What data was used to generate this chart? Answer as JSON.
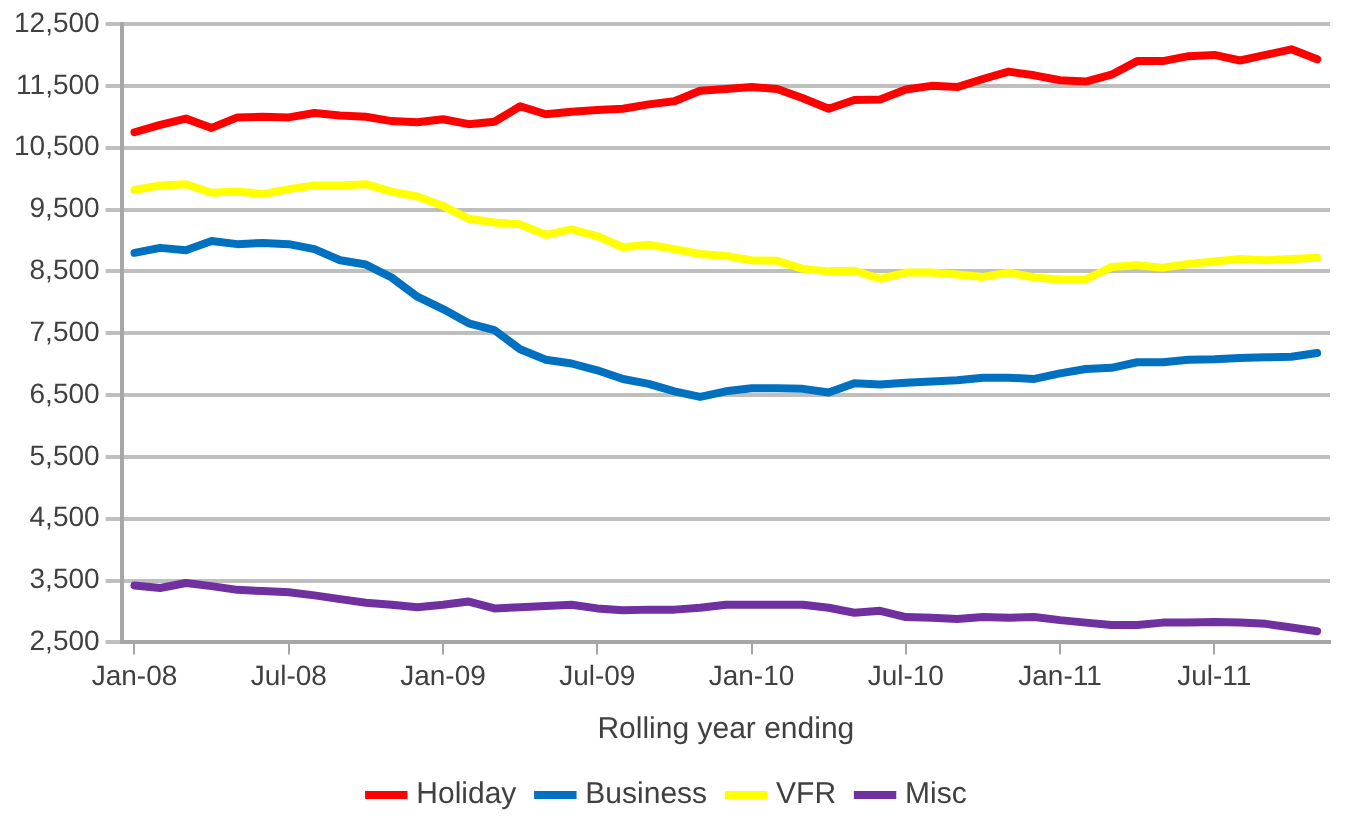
{
  "chart_data": {
    "type": "line",
    "xlabel": "Rolling year ending",
    "categories": [
      "Jan-08",
      null,
      null,
      null,
      null,
      null,
      "Jul-08",
      null,
      null,
      null,
      null,
      null,
      "Jan-09",
      null,
      null,
      null,
      null,
      null,
      "Jul-09",
      null,
      null,
      null,
      null,
      null,
      "Jan-10",
      null,
      null,
      null,
      null,
      null,
      "Jul-10",
      null,
      null,
      null,
      null,
      null,
      "Jan-11",
      null,
      null,
      null,
      null,
      null,
      "Jul-11",
      null,
      null,
      null,
      null
    ],
    "series": [
      {
        "name": "Holiday",
        "color": "#ff0000",
        "values": [
          10750,
          10870,
          10970,
          10820,
          10990,
          11000,
          10990,
          11060,
          11020,
          11000,
          10930,
          10910,
          10960,
          10880,
          10920,
          11170,
          11040,
          11080,
          11110,
          11130,
          11200,
          11250,
          11420,
          11450,
          11480,
          11450,
          11300,
          11130,
          11270,
          11280,
          11440,
          11500,
          11480,
          11610,
          11730,
          11670,
          11590,
          11570,
          11680,
          11900,
          11900,
          11980,
          12000,
          11910,
          12000,
          12090,
          11930
        ]
      },
      {
        "name": "Business",
        "color": "#0070c0",
        "values": [
          8800,
          8880,
          8840,
          8990,
          8940,
          8960,
          8940,
          8860,
          8680,
          8610,
          8400,
          8090,
          7890,
          7660,
          7550,
          7240,
          7070,
          7010,
          6900,
          6760,
          6680,
          6560,
          6470,
          6560,
          6610,
          6610,
          6600,
          6540,
          6690,
          6670,
          6700,
          6720,
          6740,
          6780,
          6780,
          6760,
          6850,
          6920,
          6940,
          7030,
          7030,
          7070,
          7080,
          7100,
          7110,
          7120,
          7180
        ]
      },
      {
        "name": "VFR",
        "color": "#ffff00",
        "values": [
          9815,
          9890,
          9910,
          9770,
          9790,
          9750,
          9830,
          9890,
          9890,
          9910,
          9790,
          9710,
          9560,
          9350,
          9290,
          9260,
          9090,
          9180,
          9070,
          8890,
          8930,
          8860,
          8780,
          8750,
          8680,
          8670,
          8540,
          8500,
          8510,
          8380,
          8480,
          8480,
          8450,
          8410,
          8480,
          8400,
          8370,
          8370,
          8570,
          8600,
          8560,
          8620,
          8660,
          8700,
          8680,
          8700,
          8720
        ]
      },
      {
        "name": "Misc",
        "color": "#7030a0",
        "values": [
          3420,
          3380,
          3460,
          3410,
          3350,
          3330,
          3310,
          3260,
          3200,
          3140,
          3110,
          3070,
          3110,
          3160,
          3050,
          3070,
          3090,
          3110,
          3050,
          3020,
          3030,
          3030,
          3060,
          3110,
          3110,
          3110,
          3110,
          3060,
          2980,
          3010,
          2910,
          2900,
          2880,
          2910,
          2900,
          2910,
          2860,
          2820,
          2780,
          2780,
          2820,
          2820,
          2830,
          2820,
          2800,
          2740,
          2680
        ]
      }
    ],
    "ylim": [
      2500,
      12500
    ],
    "yticks": [
      {
        "value": 2500,
        "label": "2,500"
      },
      {
        "value": 3500,
        "label": "3,500"
      },
      {
        "value": 4500,
        "label": "4,500"
      },
      {
        "value": 5500,
        "label": "5,500"
      },
      {
        "value": 6500,
        "label": "6,500"
      },
      {
        "value": 7500,
        "label": "7,500"
      },
      {
        "value": 8500,
        "label": "8,500"
      },
      {
        "value": 9500,
        "label": "9,500"
      },
      {
        "value": 10500,
        "label": "10,500"
      },
      {
        "value": 11500,
        "label": "11,500"
      },
      {
        "value": 12500,
        "label": "12,500"
      }
    ],
    "grid": "y",
    "legend": "bottom",
    "marker": "none",
    "line_style": "solid"
  }
}
